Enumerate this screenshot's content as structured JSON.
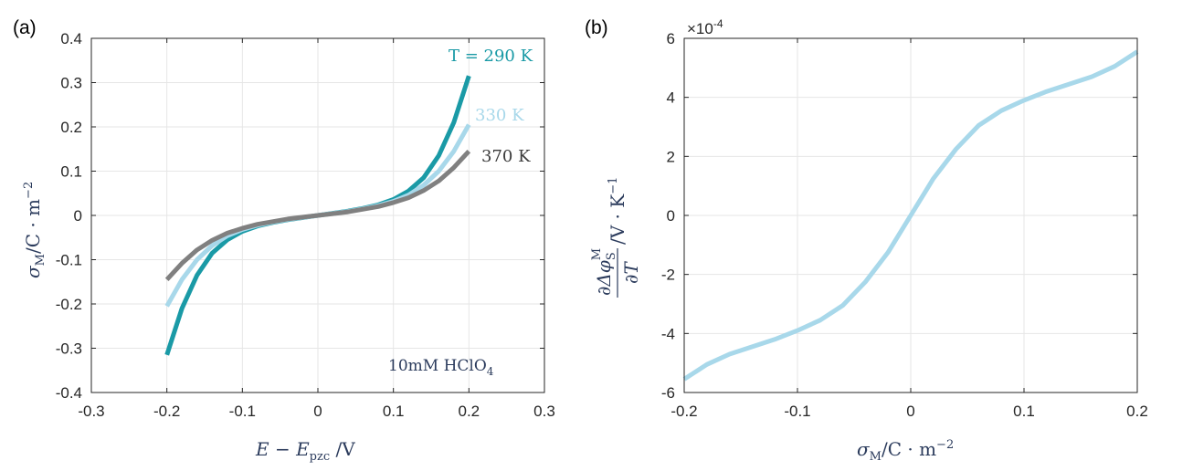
{
  "chart_data": [
    {
      "type": "line",
      "panel_label": "(a)",
      "xlabel": {
        "main": "E − E",
        "sub": "pzc",
        "unit": " /V"
      },
      "ylabel": {
        "main": "σ",
        "sub": "M",
        "unit": "/C · m",
        "sup": "−2"
      },
      "xlim": [
        -0.3,
        0.3
      ],
      "ylim": [
        -0.4,
        0.4
      ],
      "xticks": [
        -0.3,
        -0.2,
        -0.1,
        0,
        0.1,
        0.2,
        0.3
      ],
      "xtick_labels": [
        "-0.3",
        "-0.2",
        "-0.1",
        "0",
        "0.1",
        "0.2",
        "0.3"
      ],
      "yticks": [
        -0.4,
        -0.3,
        -0.2,
        -0.1,
        0,
        0.1,
        0.2,
        0.3,
        0.4
      ],
      "ytick_labels": [
        "-0.4",
        "-0.3",
        "-0.2",
        "-0.1",
        "0",
        "0.1",
        "0.2",
        "0.3",
        "0.4"
      ],
      "grid": true,
      "annotation": {
        "main": "10mM HClO",
        "sub": "4"
      },
      "series": [
        {
          "name": "T = 290 K",
          "color": "#1a9aa6",
          "x": [
            -0.2,
            -0.18,
            -0.16,
            -0.14,
            -0.12,
            -0.1,
            -0.08,
            -0.06,
            -0.04,
            -0.02,
            0,
            0.02,
            0.04,
            0.06,
            0.08,
            0.1,
            0.12,
            0.14,
            0.16,
            0.18,
            0.2
          ],
          "y": [
            -0.315,
            -0.21,
            -0.135,
            -0.085,
            -0.055,
            -0.036,
            -0.024,
            -0.016,
            -0.01,
            -0.005,
            0,
            0.005,
            0.01,
            0.016,
            0.024,
            0.036,
            0.055,
            0.085,
            0.135,
            0.21,
            0.315
          ]
        },
        {
          "name": "330 K",
          "color": "#a8d8ea",
          "x": [
            -0.2,
            -0.18,
            -0.16,
            -0.14,
            -0.12,
            -0.1,
            -0.08,
            -0.06,
            -0.04,
            -0.02,
            0,
            0.02,
            0.04,
            0.06,
            0.08,
            0.1,
            0.12,
            0.14,
            0.16,
            0.18,
            0.2
          ],
          "y": [
            -0.205,
            -0.145,
            -0.1,
            -0.068,
            -0.046,
            -0.032,
            -0.022,
            -0.015,
            -0.009,
            -0.0045,
            0,
            0.0045,
            0.009,
            0.015,
            0.022,
            0.032,
            0.046,
            0.068,
            0.1,
            0.145,
            0.205
          ]
        },
        {
          "name": "370 K",
          "color": "#808080",
          "x": [
            -0.2,
            -0.18,
            -0.16,
            -0.14,
            -0.12,
            -0.1,
            -0.08,
            -0.06,
            -0.04,
            -0.02,
            0,
            0.02,
            0.04,
            0.06,
            0.08,
            0.1,
            0.12,
            0.14,
            0.16,
            0.18,
            0.2
          ],
          "y": [
            -0.145,
            -0.108,
            -0.078,
            -0.056,
            -0.04,
            -0.029,
            -0.02,
            -0.014,
            -0.008,
            -0.004,
            0,
            0.004,
            0.008,
            0.014,
            0.02,
            0.029,
            0.04,
            0.056,
            0.078,
            0.108,
            0.145
          ]
        }
      ]
    },
    {
      "type": "line",
      "panel_label": "(b)",
      "xlabel": {
        "main": "σ",
        "sub": "M",
        "unit": "/C · m",
        "sup": "−2"
      },
      "ylabel": {
        "num_main": "∂Δφ",
        "num_sub": "S",
        "num_sup": "M",
        "den": "∂T",
        "unit": "/V · K",
        "unit_sup": "−1"
      },
      "xlim": [
        -0.2,
        0.2
      ],
      "ylim": [
        -6,
        6
      ],
      "y_exponent_label": {
        "base": "×10",
        "exp": "-4"
      },
      "xticks": [
        -0.2,
        -0.1,
        0,
        0.1,
        0.2
      ],
      "xtick_labels": [
        "-0.2",
        "-0.1",
        "0",
        "0.1",
        "0.2"
      ],
      "yticks": [
        -6,
        -4,
        -2,
        0,
        2,
        4,
        6
      ],
      "ytick_labels": [
        "-6",
        "-4",
        "-2",
        "0",
        "2",
        "4",
        "6"
      ],
      "grid": true,
      "series": [
        {
          "color": "#a8d8ea",
          "x": [
            -0.2,
            -0.18,
            -0.16,
            -0.14,
            -0.12,
            -0.1,
            -0.08,
            -0.06,
            -0.04,
            -0.02,
            0,
            0.02,
            0.04,
            0.06,
            0.08,
            0.1,
            0.12,
            0.14,
            0.16,
            0.18,
            0.2
          ],
          "y": [
            -5.55,
            -5.05,
            -4.7,
            -4.45,
            -4.2,
            -3.9,
            -3.55,
            -3.05,
            -2.25,
            -1.25,
            0,
            1.25,
            2.25,
            3.05,
            3.55,
            3.9,
            4.2,
            4.45,
            4.7,
            5.05,
            5.55
          ]
        }
      ]
    }
  ]
}
